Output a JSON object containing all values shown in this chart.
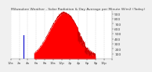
{
  "title": "Milwaukee Weather - Solar Radiation & Day Average per Minute W/m2 (Today)",
  "bg_color": "#f0f0f0",
  "plot_bg_color": "#ffffff",
  "fill_color": "#ff0000",
  "line_color": "#cc0000",
  "current_marker_color": "#0000cc",
  "grid_color": "#bbbbbb",
  "text_color": "#444444",
  "num_points": 1440,
  "peak_minute": 760,
  "peak_value": 900,
  "current_minute": 180,
  "sunrise": 330,
  "sunset": 1200,
  "ylim": [
    0,
    950
  ],
  "yticks": [
    100,
    200,
    300,
    400,
    500,
    600,
    700,
    800,
    900
  ],
  "xtick_positions": [
    0,
    120,
    240,
    360,
    480,
    600,
    720,
    840,
    960,
    1080,
    1200,
    1320,
    1439
  ],
  "xtick_labels": [
    "12a",
    "2a",
    "4a",
    "6a",
    "8a",
    "10a",
    "12p",
    "2p",
    "4p",
    "6p",
    "8p",
    "10p",
    ""
  ],
  "ylabel_fontsize": 3.2,
  "xlabel_fontsize": 3.0,
  "title_fontsize": 3.2
}
